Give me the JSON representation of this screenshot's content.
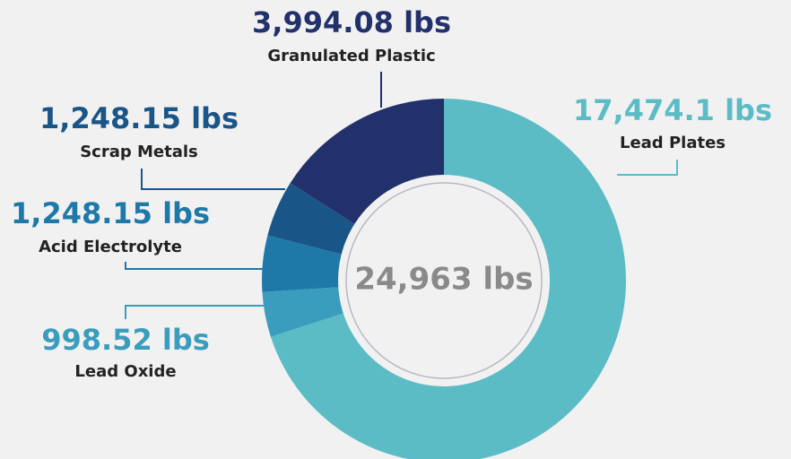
{
  "chart_data": {
    "type": "donut",
    "categories": [
      "Lead Plates",
      "Lead Oxide",
      "Acid Electrolyte",
      "Scrap Metals",
      "Granulated Plastic"
    ],
    "values": [
      17474.1,
      998.52,
      1248.15,
      1248.15,
      3994.08
    ],
    "value_labels": [
      "17,474.1 lbs",
      "998.52 lbs",
      "1,248.15 lbs",
      "1,248.15 lbs",
      "3,994.08 lbs"
    ],
    "colors": [
      "#5bbcc6",
      "#3a9dbd",
      "#1f79a8",
      "#1a5588",
      "#22316b"
    ],
    "center_label": "24,963 lbs"
  }
}
